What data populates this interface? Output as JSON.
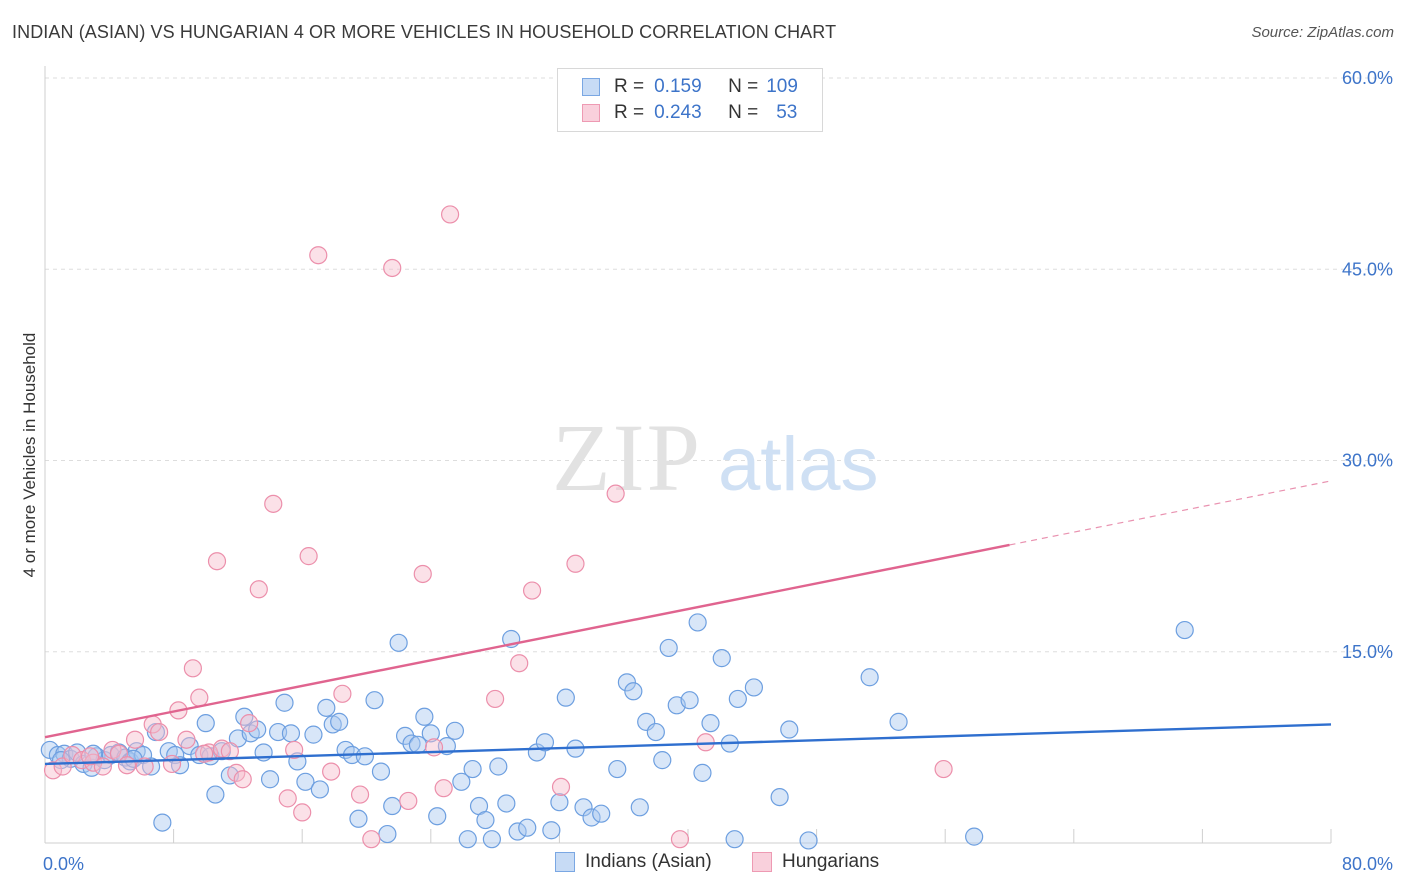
{
  "title": "INDIAN (ASIAN) VS HUNGARIAN 4 OR MORE VEHICLES IN HOUSEHOLD CORRELATION CHART",
  "source": "Source: ZipAtlas.com",
  "watermark": {
    "zip": "ZIP",
    "atlas": "atlas"
  },
  "colors": {
    "blue_fill": "#a9c8f0",
    "blue_stroke": "#6d9fe0",
    "blue_line": "#2f6fcf",
    "pink_fill": "#f6bccd",
    "pink_stroke": "#ec8fab",
    "pink_line": "#e0648f",
    "axis_label": "#3d74c9",
    "grid": "#dddddd"
  },
  "legend": {
    "series": [
      {
        "r_label": "R =",
        "r_value": "0.159",
        "n_label": "N =",
        "n_value": "109",
        "color": "blue"
      },
      {
        "r_label": "R =",
        "r_value": "0.243",
        "n_label": "N =",
        "n_value": "53",
        "color": "pink"
      }
    ]
  },
  "bottom_legend": [
    "Indians (Asian)",
    "Hungarians"
  ],
  "chart_data": {
    "type": "scatter",
    "title": "INDIAN (ASIAN) VS HUNGARIAN 4 OR MORE VEHICLES IN HOUSEHOLD CORRELATION CHART",
    "xlabel": "",
    "ylabel": "4 or more Vehicles in Household",
    "xlim": [
      0,
      80
    ],
    "ylim": [
      0,
      60
    ],
    "x_tick_labels": [
      "0.0%",
      "80.0%"
    ],
    "y_ticks": [
      15,
      30,
      45,
      60
    ],
    "y_tick_labels": [
      "15.0%",
      "30.0%",
      "45.0%",
      "60.0%"
    ],
    "grid": true,
    "legend_position": "top-center",
    "series": [
      {
        "name": "Indians (Asian)",
        "color": "blue",
        "trend": {
          "x": [
            0,
            80
          ],
          "y": [
            6.2,
            9.3
          ],
          "solid_to": 80
        },
        "points": [
          [
            0.3,
            7.3
          ],
          [
            0.8,
            6.9
          ],
          [
            1.2,
            7.0
          ],
          [
            1.6,
            6.6
          ],
          [
            2.0,
            7.1
          ],
          [
            2.4,
            6.2
          ],
          [
            2.9,
            5.9
          ],
          [
            3.2,
            6.8
          ],
          [
            3.7,
            6.5
          ],
          [
            4.1,
            6.9
          ],
          [
            4.6,
            7.1
          ],
          [
            5.0,
            6.7
          ],
          [
            5.3,
            6.4
          ],
          [
            5.7,
            7.2
          ],
          [
            6.1,
            6.9
          ],
          [
            6.6,
            6.0
          ],
          [
            6.9,
            8.7
          ],
          [
            7.3,
            1.6
          ],
          [
            7.7,
            7.2
          ],
          [
            8.1,
            6.9
          ],
          [
            8.4,
            6.1
          ],
          [
            9.0,
            7.6
          ],
          [
            9.6,
            6.9
          ],
          [
            10.0,
            9.4
          ],
          [
            10.3,
            6.8
          ],
          [
            10.6,
            3.8
          ],
          [
            11.0,
            7.2
          ],
          [
            11.5,
            5.3
          ],
          [
            12.0,
            8.2
          ],
          [
            12.4,
            9.9
          ],
          [
            12.8,
            8.6
          ],
          [
            13.2,
            8.9
          ],
          [
            13.6,
            7.1
          ],
          [
            14.0,
            5.0
          ],
          [
            14.5,
            8.7
          ],
          [
            14.9,
            11.0
          ],
          [
            15.3,
            8.6
          ],
          [
            15.7,
            6.4
          ],
          [
            16.2,
            4.8
          ],
          [
            16.7,
            8.5
          ],
          [
            17.1,
            4.2
          ],
          [
            17.5,
            10.6
          ],
          [
            17.9,
            9.3
          ],
          [
            18.3,
            9.5
          ],
          [
            18.7,
            7.3
          ],
          [
            19.1,
            6.9
          ],
          [
            19.5,
            1.9
          ],
          [
            19.9,
            6.8
          ],
          [
            20.5,
            11.2
          ],
          [
            20.9,
            5.6
          ],
          [
            21.3,
            0.7
          ],
          [
            21.6,
            2.9
          ],
          [
            22.0,
            15.7
          ],
          [
            22.4,
            8.4
          ],
          [
            22.8,
            7.8
          ],
          [
            23.2,
            7.7
          ],
          [
            23.6,
            9.9
          ],
          [
            24.0,
            8.6
          ],
          [
            24.4,
            2.1
          ],
          [
            25.0,
            7.6
          ],
          [
            25.5,
            8.8
          ],
          [
            25.9,
            4.8
          ],
          [
            26.3,
            0.3
          ],
          [
            26.6,
            5.8
          ],
          [
            27.0,
            2.9
          ],
          [
            27.4,
            1.8
          ],
          [
            27.8,
            0.3
          ],
          [
            28.2,
            6.0
          ],
          [
            28.7,
            3.1
          ],
          [
            29.0,
            16.0
          ],
          [
            29.4,
            0.9
          ],
          [
            30.0,
            1.2
          ],
          [
            30.6,
            7.1
          ],
          [
            31.1,
            7.9
          ],
          [
            31.5,
            1.0
          ],
          [
            32.0,
            3.2
          ],
          [
            32.4,
            11.4
          ],
          [
            33.0,
            7.4
          ],
          [
            33.5,
            2.8
          ],
          [
            34.0,
            2.0
          ],
          [
            34.6,
            2.3
          ],
          [
            35.6,
            5.8
          ],
          [
            36.2,
            12.6
          ],
          [
            36.6,
            11.9
          ],
          [
            37.0,
            2.8
          ],
          [
            37.4,
            9.5
          ],
          [
            38.0,
            8.7
          ],
          [
            38.4,
            6.5
          ],
          [
            38.8,
            15.3
          ],
          [
            39.3,
            10.8
          ],
          [
            40.1,
            11.2
          ],
          [
            40.6,
            17.3
          ],
          [
            40.9,
            5.5
          ],
          [
            41.4,
            9.4
          ],
          [
            42.1,
            14.5
          ],
          [
            42.6,
            7.8
          ],
          [
            42.9,
            0.3
          ],
          [
            43.1,
            11.3
          ],
          [
            44.1,
            12.2
          ],
          [
            45.7,
            3.6
          ],
          [
            46.3,
            8.9
          ],
          [
            47.5,
            0.2
          ],
          [
            51.3,
            13.0
          ],
          [
            53.1,
            9.5
          ],
          [
            57.8,
            0.5
          ],
          [
            70.9,
            16.7
          ],
          [
            1.0,
            6.5
          ],
          [
            3.0,
            7.0
          ],
          [
            5.5,
            6.6
          ]
        ]
      },
      {
        "name": "Hungarians",
        "color": "pink",
        "trend": {
          "x": [
            0,
            80
          ],
          "y": [
            8.3,
            28.4
          ],
          "solid_to": 60
        },
        "points": [
          [
            0.5,
            5.7
          ],
          [
            1.1,
            6.0
          ],
          [
            1.7,
            6.9
          ],
          [
            2.3,
            6.5
          ],
          [
            3.0,
            6.3
          ],
          [
            3.6,
            6.0
          ],
          [
            4.2,
            7.3
          ],
          [
            4.6,
            7.0
          ],
          [
            5.1,
            6.1
          ],
          [
            5.6,
            8.1
          ],
          [
            6.2,
            6.0
          ],
          [
            6.7,
            9.3
          ],
          [
            7.1,
            8.7
          ],
          [
            7.9,
            6.2
          ],
          [
            8.3,
            10.4
          ],
          [
            8.8,
            8.1
          ],
          [
            9.2,
            13.7
          ],
          [
            9.6,
            11.4
          ],
          [
            10.2,
            7.1
          ],
          [
            10.7,
            22.1
          ],
          [
            11.0,
            7.4
          ],
          [
            11.5,
            7.2
          ],
          [
            11.9,
            5.5
          ],
          [
            12.3,
            5.0
          ],
          [
            12.7,
            9.4
          ],
          [
            13.3,
            19.9
          ],
          [
            14.2,
            26.6
          ],
          [
            15.1,
            3.5
          ],
          [
            15.5,
            7.3
          ],
          [
            16.0,
            2.4
          ],
          [
            16.4,
            22.5
          ],
          [
            17.0,
            46.1
          ],
          [
            17.8,
            5.6
          ],
          [
            18.5,
            11.7
          ],
          [
            19.6,
            3.8
          ],
          [
            20.3,
            0.3
          ],
          [
            21.6,
            45.1
          ],
          [
            22.6,
            3.3
          ],
          [
            23.5,
            21.1
          ],
          [
            24.2,
            7.5
          ],
          [
            24.8,
            4.3
          ],
          [
            25.2,
            49.3
          ],
          [
            28.0,
            11.3
          ],
          [
            29.5,
            14.1
          ],
          [
            30.3,
            19.8
          ],
          [
            32.1,
            4.4
          ],
          [
            33.0,
            21.9
          ],
          [
            35.5,
            27.4
          ],
          [
            39.5,
            0.3
          ],
          [
            41.1,
            7.9
          ],
          [
            55.9,
            5.8
          ],
          [
            2.8,
            6.8
          ],
          [
            9.9,
            7.0
          ]
        ]
      }
    ]
  }
}
